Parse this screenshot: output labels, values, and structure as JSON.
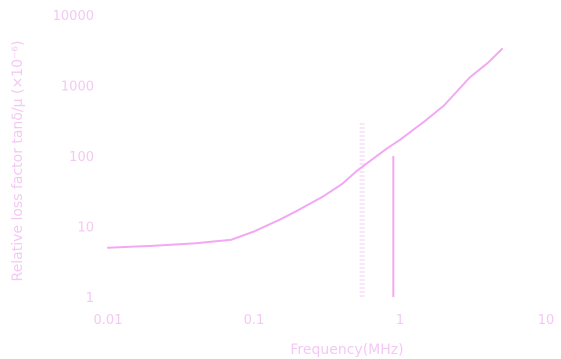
{
  "chart_data": {
    "type": "line",
    "title": "",
    "xlabel": "Frequency(MHz)",
    "ylabel": "Relative loss factor tanδ/μ (×10⁻⁶)",
    "x_scale": "log",
    "y_scale": "log",
    "xlim": [
      0.01,
      10
    ],
    "ylim": [
      1,
      10000
    ],
    "x_tick_labels": [
      "0.01",
      "0.1",
      "1",
      "10"
    ],
    "y_tick_labels": [
      "1",
      "10",
      "100",
      "1000",
      "10000"
    ],
    "grid": false,
    "series": [
      {
        "color": "#f2a8f2",
        "x": [
          0.01,
          0.02,
          0.04,
          0.07,
          0.1,
          0.15,
          0.2,
          0.3,
          0.4,
          0.5,
          0.6,
          0.8,
          1,
          1.5,
          2,
          3,
          4,
          5
        ],
        "y": [
          5,
          5.3,
          5.8,
          6.5,
          8.5,
          12.5,
          17,
          27,
          40,
          60,
          80,
          125,
          170,
          320,
          520,
          1300,
          2100,
          3300
        ]
      }
    ],
    "annotations": [
      {
        "type": "vertical-line",
        "x": 0.9,
        "y_from": 1,
        "y_to": 100,
        "style": "solid",
        "color": "#f2a8f2"
      },
      {
        "type": "vertical-line",
        "x": 0.55,
        "y_from": 1,
        "y_to": 300,
        "style": "faint",
        "color": "#f7d9f7"
      }
    ]
  }
}
